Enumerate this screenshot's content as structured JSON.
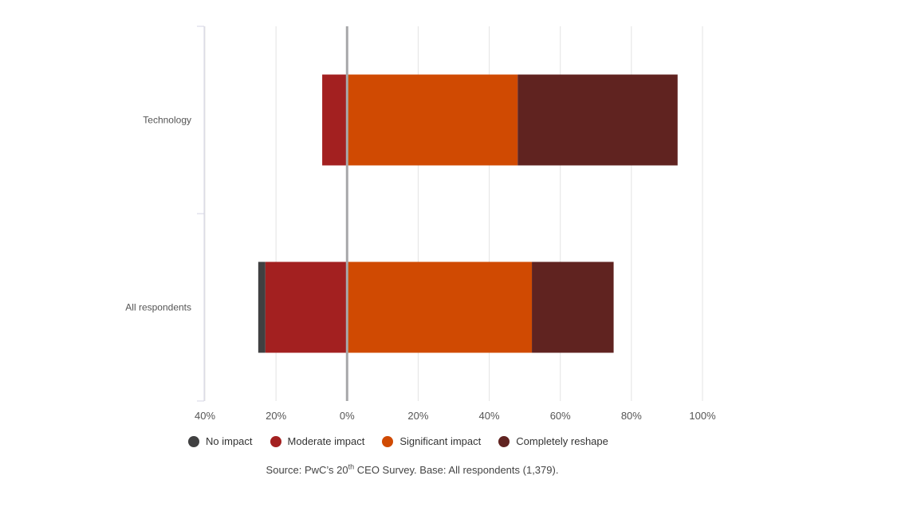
{
  "chart_data": {
    "type": "bar",
    "orientation": "horizontal",
    "stacked": "diverging",
    "categories": [
      "Technology",
      "All respondents"
    ],
    "series": [
      {
        "name": "No impact",
        "color": "#404041",
        "values": [
          0,
          2
        ],
        "direction": "negative"
      },
      {
        "name": "Moderate impact",
        "color": "#a32020",
        "values": [
          7,
          23
        ],
        "direction": "negative"
      },
      {
        "name": "Significant impact",
        "color": "#d04a02",
        "values": [
          48,
          52
        ],
        "direction": "positive"
      },
      {
        "name": "Completely reshape",
        "color": "#602320",
        "values": [
          45,
          23
        ],
        "direction": "positive"
      }
    ],
    "xlim": [
      -40,
      100
    ],
    "xticks": [
      -40,
      -20,
      0,
      20,
      40,
      60,
      80,
      100
    ],
    "xtick_labels": [
      "40%",
      "20%",
      "0%",
      "20%",
      "40%",
      "60%",
      "80%",
      "100%"
    ],
    "grid": true,
    "legend_position": "bottom"
  },
  "source": {
    "prefix": "Source: PwC’s 20",
    "sup": "th",
    "suffix": " CEO Survey. Base: All respondents (1,379)."
  }
}
